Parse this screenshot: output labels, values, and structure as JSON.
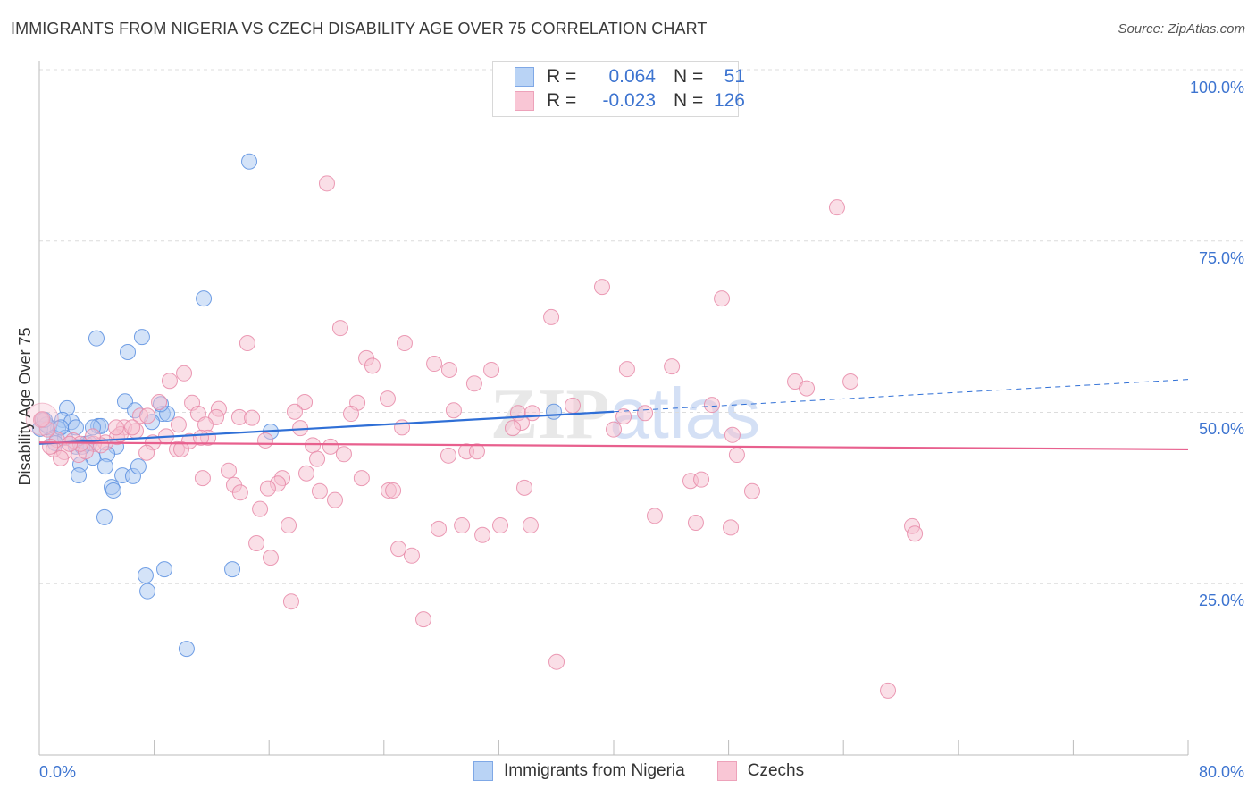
{
  "header": {
    "title": "IMMIGRANTS FROM NIGERIA VS CZECH DISABILITY AGE OVER 75 CORRELATION CHART",
    "source": "Source: ZipAtlas.com"
  },
  "legend": {
    "rows": [
      {
        "r_label": "R =",
        "r_value": "0.064",
        "n_label": "N =",
        "n_value": "51"
      },
      {
        "r_label": "R =",
        "r_value": "-0.023",
        "n_label": "N =",
        "n_value": "126"
      }
    ]
  },
  "chart_data": {
    "type": "scatter",
    "title": "IMMIGRANTS FROM NIGERIA VS CZECH DISABILITY AGE OVER 75 CORRELATION CHART",
    "xlabel": "",
    "ylabel": "Disability Age Over 75",
    "xlim": [
      0,
      80
    ],
    "ylim": [
      0,
      100
    ],
    "x_tick_labels": [
      "0.0%",
      "80.0%"
    ],
    "y_ticks": [
      100,
      75,
      50,
      25
    ],
    "y_tick_labels": [
      "100.0%",
      "75.0%",
      "50.0%",
      "25.0%"
    ],
    "grid": true,
    "watermark": "ZIPatlas",
    "series": [
      {
        "name": "Immigrants from Nigeria",
        "color": "#5b8fe0",
        "fill": "#a9c7f2",
        "line_color": "#2f6fd6",
        "trend": {
          "x0": 0,
          "y0": 45.4,
          "x_solid_end": 40,
          "x1": 80,
          "y1": 54.8
        },
        "points": [
          [
            14.62,
            86.6
          ],
          [
            11.45,
            66.6
          ],
          [
            3.98,
            60.8
          ],
          [
            7.15,
            61.0
          ],
          [
            6.16,
            58.8
          ],
          [
            5.97,
            51.6
          ],
          [
            6.66,
            50.3
          ],
          [
            8.58,
            49.8
          ],
          [
            8.9,
            49.8
          ],
          [
            8.46,
            51.2
          ],
          [
            1.93,
            50.6
          ],
          [
            0.25,
            48.9
          ],
          [
            0.68,
            47.8
          ],
          [
            1.62,
            48.9
          ],
          [
            2.24,
            48.6
          ],
          [
            2.55,
            47.8
          ],
          [
            4.11,
            48.0
          ],
          [
            4.29,
            48.0
          ],
          [
            3.73,
            47.8
          ],
          [
            1.31,
            47.6
          ],
          [
            1.0,
            46.3
          ],
          [
            1.8,
            46.3
          ],
          [
            3.23,
            45.4
          ],
          [
            3.48,
            45.5
          ],
          [
            2.55,
            45.0
          ],
          [
            5.35,
            45.0
          ],
          [
            4.73,
            43.9
          ],
          [
            3.73,
            43.4
          ],
          [
            2.86,
            42.4
          ],
          [
            4.6,
            42.1
          ],
          [
            2.74,
            40.8
          ],
          [
            5.79,
            40.8
          ],
          [
            6.53,
            40.7
          ],
          [
            6.9,
            42.1
          ],
          [
            5.04,
            39.1
          ],
          [
            5.16,
            38.6
          ],
          [
            4.54,
            34.7
          ],
          [
            7.4,
            26.2
          ],
          [
            8.71,
            27.1
          ],
          [
            7.53,
            23.9
          ],
          [
            13.44,
            27.1
          ],
          [
            10.26,
            15.5
          ],
          [
            16.11,
            47.2
          ],
          [
            35.83,
            50.1
          ],
          [
            0.06,
            47.6
          ],
          [
            0.5,
            48.2
          ],
          [
            1.49,
            47.8
          ],
          [
            7.84,
            48.6
          ],
          [
            1.12,
            45.5
          ],
          [
            2.99,
            45.0
          ],
          [
            0.37,
            48.9
          ]
        ]
      },
      {
        "name": "Czechs",
        "color": "#e889a8",
        "fill": "#f6bfd0",
        "line_color": "#e8608e",
        "trend": {
          "x0": 0,
          "y0": 45.6,
          "x_solid_end": 80,
          "x1": 80,
          "y1": 44.6
        },
        "points": [
          [
            20.03,
            83.4
          ],
          [
            55.55,
            79.9
          ],
          [
            39.19,
            68.3
          ],
          [
            47.53,
            66.6
          ],
          [
            35.65,
            63.9
          ],
          [
            20.96,
            62.3
          ],
          [
            14.49,
            60.1
          ],
          [
            25.44,
            60.1
          ],
          [
            22.77,
            57.9
          ],
          [
            23.2,
            56.8
          ],
          [
            27.5,
            57.1
          ],
          [
            28.55,
            56.2
          ],
          [
            31.48,
            56.2
          ],
          [
            40.93,
            56.3
          ],
          [
            44.05,
            56.7
          ],
          [
            10.08,
            55.7
          ],
          [
            9.08,
            54.6
          ],
          [
            30.29,
            54.2
          ],
          [
            52.63,
            54.5
          ],
          [
            53.44,
            53.5
          ],
          [
            56.49,
            54.5
          ],
          [
            24.26,
            52.0
          ],
          [
            18.48,
            51.5
          ],
          [
            22.15,
            51.4
          ],
          [
            37.14,
            51.0
          ],
          [
            46.84,
            51.1
          ],
          [
            8.34,
            51.5
          ],
          [
            10.64,
            51.4
          ],
          [
            12.5,
            50.5
          ],
          [
            11.07,
            49.8
          ],
          [
            17.79,
            50.1
          ],
          [
            21.71,
            49.8
          ],
          [
            28.86,
            50.3
          ],
          [
            33.34,
            49.9
          ],
          [
            34.33,
            49.9
          ],
          [
            42.18,
            49.9
          ],
          [
            40.69,
            49.4
          ],
          [
            13.93,
            49.3
          ],
          [
            14.81,
            49.2
          ],
          [
            12.32,
            49.3
          ],
          [
            11.57,
            48.2
          ],
          [
            33.59,
            48.5
          ],
          [
            32.97,
            47.7
          ],
          [
            25.26,
            47.8
          ],
          [
            40.0,
            47.5
          ],
          [
            18.17,
            47.7
          ],
          [
            7.03,
            49.5
          ],
          [
            5.91,
            47.8
          ],
          [
            6.72,
            47.3
          ],
          [
            8.83,
            46.5
          ],
          [
            11.76,
            46.3
          ],
          [
            10.45,
            45.8
          ],
          [
            15.74,
            45.9
          ],
          [
            48.27,
            46.7
          ],
          [
            19.04,
            45.2
          ],
          [
            20.28,
            45.0
          ],
          [
            7.9,
            45.6
          ],
          [
            5.41,
            46.4
          ],
          [
            4.6,
            45.6
          ],
          [
            3.79,
            45.4
          ],
          [
            2.36,
            45.9
          ],
          [
            1.24,
            46.0
          ],
          [
            0.56,
            47.5
          ],
          [
            0.12,
            48.9
          ],
          [
            1.0,
            44.6
          ],
          [
            1.74,
            44.2
          ],
          [
            2.74,
            43.8
          ],
          [
            1.49,
            43.3
          ],
          [
            9.58,
            44.6
          ],
          [
            9.89,
            44.6
          ],
          [
            7.47,
            44.1
          ],
          [
            21.21,
            43.9
          ],
          [
            19.35,
            43.2
          ],
          [
            29.74,
            44.3
          ],
          [
            30.48,
            44.3
          ],
          [
            28.49,
            43.7
          ],
          [
            48.58,
            43.8
          ],
          [
            13.19,
            41.5
          ],
          [
            18.6,
            41.1
          ],
          [
            16.92,
            40.4
          ],
          [
            11.38,
            40.4
          ],
          [
            22.45,
            40.4
          ],
          [
            16.61,
            39.6
          ],
          [
            13.56,
            39.4
          ],
          [
            15.92,
            38.9
          ],
          [
            13.99,
            38.3
          ],
          [
            19.53,
            38.5
          ],
          [
            24.32,
            38.6
          ],
          [
            24.64,
            38.6
          ],
          [
            33.78,
            39.0
          ],
          [
            45.35,
            40.0
          ],
          [
            46.1,
            40.2
          ],
          [
            49.64,
            38.5
          ],
          [
            20.59,
            37.2
          ],
          [
            15.37,
            35.9
          ],
          [
            42.86,
            34.9
          ],
          [
            45.72,
            33.9
          ],
          [
            48.15,
            33.2
          ],
          [
            60.78,
            33.4
          ],
          [
            60.97,
            32.3
          ],
          [
            17.36,
            33.5
          ],
          [
            27.81,
            33.0
          ],
          [
            29.43,
            33.5
          ],
          [
            32.1,
            33.5
          ],
          [
            34.21,
            33.5
          ],
          [
            30.86,
            32.1
          ],
          [
            15.12,
            30.9
          ],
          [
            25.01,
            30.1
          ],
          [
            25.94,
            29.1
          ],
          [
            16.11,
            28.8
          ],
          [
            17.54,
            22.4
          ],
          [
            26.75,
            19.8
          ],
          [
            36.02,
            13.6
          ],
          [
            59.1,
            9.4
          ],
          [
            5.66,
            46.8
          ],
          [
            4.29,
            45.2
          ],
          [
            3.23,
            44.3
          ],
          [
            6.47,
            47.8
          ],
          [
            7.53,
            49.5
          ],
          [
            5.35,
            47.8
          ],
          [
            3.73,
            46.5
          ],
          [
            9.7,
            48.2
          ],
          [
            2.86,
            45.4
          ],
          [
            0.75,
            45.0
          ],
          [
            2.12,
            45.4
          ],
          [
            11.26,
            46.3
          ],
          [
            0.2,
            49.0
          ]
        ]
      }
    ]
  }
}
